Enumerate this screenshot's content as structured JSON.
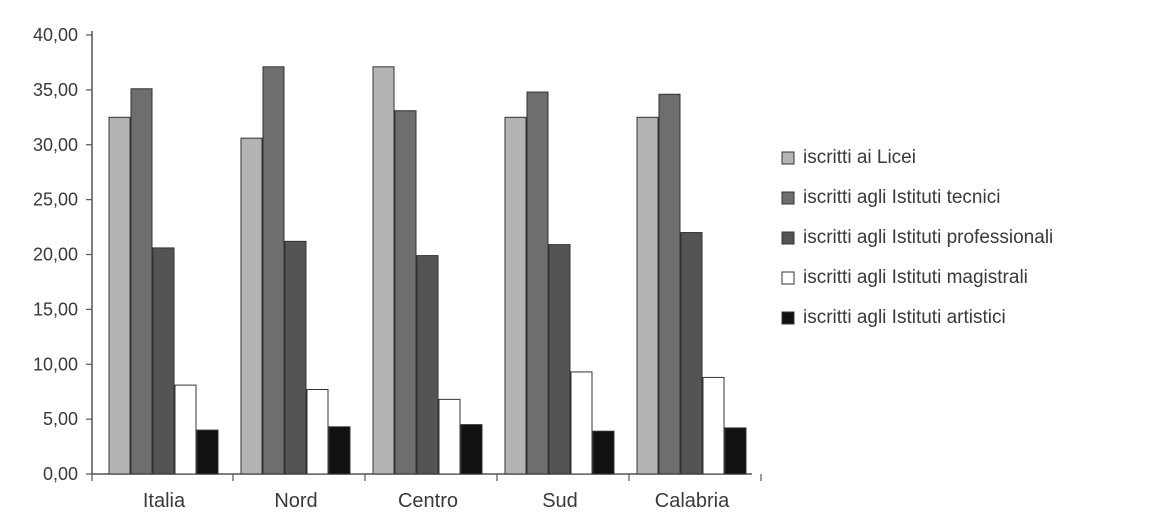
{
  "chart_data": {
    "type": "bar",
    "categories": [
      "Italia",
      "Nord",
      "Centro",
      "Sud",
      "Calabria"
    ],
    "series": [
      {
        "name": "iscritti ai Licei",
        "values": [
          32.5,
          30.6,
          37.1,
          32.5,
          32.5
        ],
        "color": "#b4b4b4"
      },
      {
        "name": "iscritti agli Istituti tecnici",
        "values": [
          35.1,
          37.1,
          33.1,
          34.8,
          34.6
        ],
        "color": "#6e6e6e"
      },
      {
        "name": "iscritti agli Istituti professionali",
        "values": [
          20.6,
          21.2,
          19.9,
          20.9,
          22.0
        ],
        "color": "#545454"
      },
      {
        "name": "iscritti agli Istituti magistrali",
        "values": [
          8.1,
          7.7,
          6.8,
          9.3,
          8.8
        ],
        "color": "#ffffff"
      },
      {
        "name": "iscritti agli Istituti artistici",
        "values": [
          4.0,
          4.3,
          4.5,
          3.9,
          4.2
        ],
        "color": "#111111"
      }
    ],
    "yticks": [
      "0,00",
      "5,00",
      "10,00",
      "15,00",
      "20,00",
      "25,00",
      "30,00",
      "35,00",
      "40,00"
    ],
    "ylim": [
      0,
      40
    ],
    "grid": false,
    "legend_position": "right"
  }
}
